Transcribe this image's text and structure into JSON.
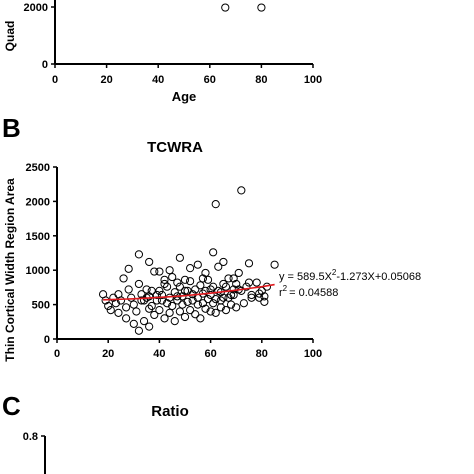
{
  "chart_data": [
    {
      "type": "scatter",
      "panel": "",
      "title": "",
      "xlabel": "Age",
      "ylabel": "Quad",
      "xlim": [
        0,
        100
      ],
      "x_ticks": [
        "0",
        "20",
        "40",
        "60",
        "80",
        "100"
      ],
      "y_ticks": [
        "0",
        "2000"
      ],
      "points": [
        [
          66,
          1980
        ],
        [
          80,
          1980
        ]
      ]
    },
    {
      "type": "scatter",
      "panel": "B",
      "title": "TCWRA",
      "xlabel": "",
      "ylabel": "Thin Cortical Width Region Area",
      "xlim": [
        0,
        100
      ],
      "ylim": [
        0,
        2500
      ],
      "x_ticks": [
        "0",
        "20",
        "40",
        "60",
        "80",
        "100"
      ],
      "y_ticks": [
        "0",
        "500",
        "1000",
        "1500",
        "2000",
        "2500"
      ],
      "equation": {
        "prefix": "y = 589.5X",
        "exp": "2",
        "suffix": "-1.273X+0.05068",
        "r_base": "r",
        "r_exp": "2",
        "r_value": "= 0.04588"
      },
      "fit_curve": [
        [
          18,
          570
        ],
        [
          30,
          585
        ],
        [
          40,
          605
        ],
        [
          50,
          630
        ],
        [
          60,
          665
        ],
        [
          70,
          710
        ],
        [
          80,
          760
        ],
        [
          85,
          790
        ]
      ],
      "points": [
        [
          18,
          650
        ],
        [
          19,
          560
        ],
        [
          20,
          480
        ],
        [
          21,
          420
        ],
        [
          22,
          600
        ],
        [
          23,
          520
        ],
        [
          24,
          650
        ],
        [
          25,
          560
        ],
        [
          26,
          880
        ],
        [
          27,
          460
        ],
        [
          28,
          720
        ],
        [
          29,
          600
        ],
        [
          30,
          500
        ],
        [
          31,
          400
        ],
        [
          32,
          800
        ],
        [
          33,
          650
        ],
        [
          34,
          560
        ],
        [
          35,
          720
        ],
        [
          36,
          620
        ],
        [
          37,
          480
        ],
        [
          38,
          980
        ],
        [
          39,
          560
        ],
        [
          40,
          700
        ],
        [
          41,
          640
        ],
        [
          42,
          800
        ],
        [
          43,
          520
        ],
        [
          44,
          600
        ],
        [
          45,
          900
        ],
        [
          46,
          680
        ],
        [
          47,
          560
        ],
        [
          48,
          760
        ],
        [
          49,
          620
        ],
        [
          50,
          700
        ],
        [
          51,
          540
        ],
        [
          52,
          840
        ],
        [
          53,
          650
        ],
        [
          54,
          720
        ],
        [
          55,
          600
        ],
        [
          56,
          780
        ],
        [
          57,
          520
        ],
        [
          58,
          700
        ],
        [
          59,
          860
        ],
        [
          60,
          640
        ],
        [
          61,
          760
        ],
        [
          62,
          580
        ],
        [
          63,
          1050
        ],
        [
          64,
          680
        ],
        [
          65,
          600
        ],
        [
          66,
          760
        ],
        [
          67,
          880
        ],
        [
          68,
          640
        ],
        [
          69,
          720
        ],
        [
          70,
          800
        ],
        [
          72,
          700
        ],
        [
          74,
          760
        ],
        [
          76,
          640
        ],
        [
          78,
          820
        ],
        [
          80,
          700
        ],
        [
          82,
          760
        ],
        [
          24,
          380
        ],
        [
          27,
          300
        ],
        [
          30,
          220
        ],
        [
          32,
          120
        ],
        [
          34,
          260
        ],
        [
          36,
          180
        ],
        [
          38,
          350
        ],
        [
          40,
          420
        ],
        [
          42,
          300
        ],
        [
          44,
          380
        ],
        [
          46,
          260
        ],
        [
          48,
          400
        ],
        [
          50,
          320
        ],
        [
          52,
          420
        ],
        [
          54,
          360
        ],
        [
          56,
          300
        ],
        [
          58,
          440
        ],
        [
          60,
          400
        ],
        [
          62,
          380
        ],
        [
          64,
          460
        ],
        [
          66,
          420
        ],
        [
          68,
          500
        ],
        [
          70,
          460
        ],
        [
          73,
          520
        ],
        [
          76,
          600
        ],
        [
          79,
          660
        ],
        [
          81,
          540
        ],
        [
          28,
          1020
        ],
        [
          32,
          1230
        ],
        [
          36,
          1120
        ],
        [
          40,
          980
        ],
        [
          44,
          1000
        ],
        [
          48,
          1180
        ],
        [
          52,
          1030
        ],
        [
          55,
          1080
        ],
        [
          58,
          960
        ],
        [
          61,
          1260
        ],
        [
          65,
          1120
        ],
        [
          71,
          960
        ],
        [
          75,
          1100
        ],
        [
          85,
          1080
        ],
        [
          33,
          560
        ],
        [
          37,
          700
        ],
        [
          41,
          560
        ],
        [
          43,
          760
        ],
        [
          47,
          820
        ],
        [
          49,
          500
        ],
        [
          51,
          700
        ],
        [
          53,
          560
        ],
        [
          57,
          660
        ],
        [
          59,
          580
        ],
        [
          61,
          520
        ],
        [
          63,
          700
        ],
        [
          65,
          800
        ],
        [
          67,
          600
        ],
        [
          69,
          640
        ],
        [
          71,
          720
        ],
        [
          36,
          440
        ],
        [
          39,
          640
        ],
        [
          45,
          480
        ],
        [
          50,
          860
        ],
        [
          55,
          500
        ],
        [
          60,
          720
        ],
        [
          64,
          560
        ],
        [
          69,
          880
        ],
        [
          75,
          820
        ],
        [
          79,
          600
        ],
        [
          81,
          620
        ],
        [
          57,
          880
        ],
        [
          47,
          620
        ],
        [
          42,
          860
        ],
        [
          35,
          600
        ],
        [
          62,
          1960
        ],
        [
          72,
          2160
        ]
      ]
    },
    {
      "type": "scatter",
      "panel": "C",
      "title": "Ratio",
      "xlabel": "",
      "ylabel": "",
      "y_ticks": [
        "0.8"
      ],
      "points": []
    }
  ]
}
